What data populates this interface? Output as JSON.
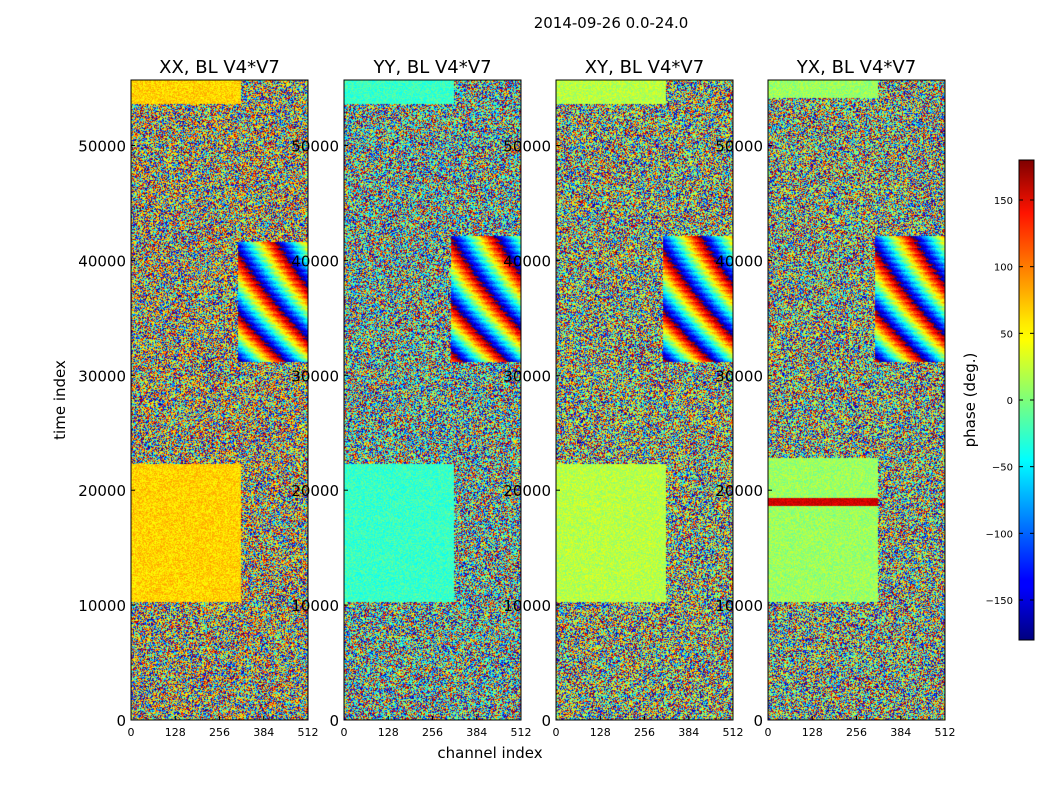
{
  "figure": {
    "title": "2014-09-26 0.0-24.0",
    "xlabel": "channel index",
    "ylabel": "time index"
  },
  "chart_data": [
    {
      "type": "heatmap",
      "title": "XX, BL V4*V7",
      "x_ticks": [
        "0",
        "128",
        "256",
        "384",
        "512"
      ],
      "y_ticks": [
        "0",
        "10000",
        "20000",
        "30000",
        "40000",
        "50000"
      ],
      "xlim": [
        0,
        512
      ],
      "ylim": [
        0,
        55700
      ],
      "value_range_deg": [
        -180,
        180
      ],
      "dominant_phase_deg": 60
    },
    {
      "type": "heatmap",
      "title": "YY, BL V4*V7",
      "x_ticks": [
        "0",
        "128",
        "256",
        "384",
        "512"
      ],
      "y_ticks": [
        "0",
        "10000",
        "20000",
        "30000",
        "40000",
        "50000"
      ],
      "xlim": [
        0,
        512
      ],
      "ylim": [
        0,
        55700
      ],
      "value_range_deg": [
        -180,
        180
      ],
      "dominant_phase_deg": -25
    },
    {
      "type": "heatmap",
      "title": "XY, BL V4*V7",
      "x_ticks": [
        "0",
        "128",
        "256",
        "384",
        "512"
      ],
      "y_ticks": [
        "0",
        "10000",
        "20000",
        "30000",
        "40000",
        "50000"
      ],
      "xlim": [
        0,
        512
      ],
      "ylim": [
        0,
        55700
      ],
      "value_range_deg": [
        -180,
        180
      ],
      "dominant_phase_deg": 20
    },
    {
      "type": "heatmap",
      "title": "YX, BL V4*V7",
      "x_ticks": [
        "0",
        "128",
        "256",
        "384",
        "512"
      ],
      "y_ticks": [
        "0",
        "10000",
        "20000",
        "30000",
        "40000",
        "50000"
      ],
      "xlim": [
        0,
        512
      ],
      "ylim": [
        0,
        55700
      ],
      "value_range_deg": [
        -180,
        180
      ],
      "dominant_phase_deg": 10
    }
  ],
  "colorbar": {
    "label": "phase (deg.)",
    "range": [
      -180,
      180
    ],
    "ticks": [
      150,
      100,
      50,
      0,
      -50,
      -100,
      -150
    ],
    "tick_labels": [
      "150",
      "100",
      "50",
      "0",
      "−50",
      "−100",
      "−150"
    ],
    "colormap": "jet"
  }
}
